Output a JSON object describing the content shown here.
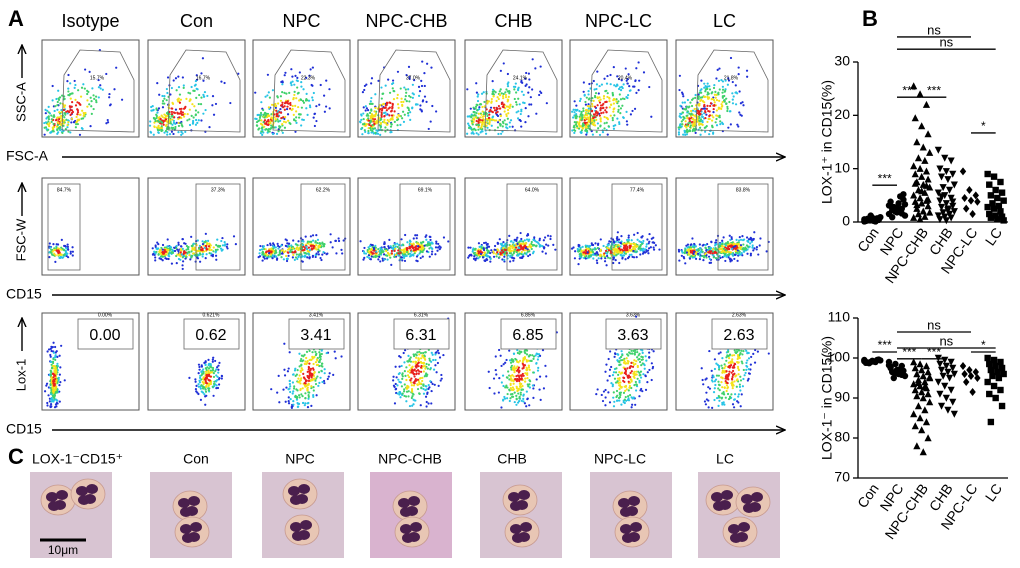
{
  "panel_labels": [
    "A",
    "B",
    "C"
  ],
  "flow": {
    "groups": [
      "Isotype",
      "Con",
      "NPC",
      "NPC-CHB",
      "CHB",
      "NPC-LC",
      "LC"
    ],
    "rows": [
      {
        "y_label": "SSC-A",
        "x_label": "FSC-A",
        "gates": [
          "15.7%",
          "16.7%",
          "22.3%",
          "37.0%",
          "24.1%",
          "20.4%",
          "21.8%"
        ]
      },
      {
        "y_label": "FSC-W",
        "x_label": "CD15",
        "gates": [
          "84.7%",
          "37.3%",
          "62.2%",
          "69.1%",
          "64.0%",
          "77.4%",
          "83.8%"
        ]
      },
      {
        "y_label": "Lox-1",
        "x_label": "CD15",
        "gates": [
          "0.00%",
          "0.621%",
          "3.41%",
          "6.31%",
          "6.85%",
          "3.63%",
          "2.63%"
        ],
        "values": [
          "0.00",
          "0.62",
          "3.41",
          "6.31",
          "6.85",
          "3.63",
          "2.63"
        ]
      }
    ]
  },
  "chart_data": [
    {
      "type": "strip",
      "ylabel": "LOX-1⁺ in CD15(%)",
      "categories": [
        "Con",
        "NPC",
        "NPC-CHB",
        "CHB",
        "NPC-LC",
        "LC"
      ],
      "markers": [
        "circle",
        "circle",
        "triangle",
        "triangle-down",
        "diamond",
        "square"
      ],
      "color": "#000000",
      "ylim": [
        0,
        30
      ],
      "yticks": [
        0,
        10,
        20,
        30
      ],
      "values": [
        [
          0.1,
          0.3,
          0.5,
          0.2,
          0.8,
          0.4,
          0.6,
          0.2,
          0.9,
          0.3,
          0.1,
          0.5,
          1.2,
          0.7,
          0.4
        ],
        [
          1.5,
          2.0,
          2.5,
          3.0,
          1.8,
          4.2,
          2.2,
          3.5,
          1.2,
          2.8,
          4.8,
          3.1,
          2.0,
          1.6,
          3.8,
          2.6,
          5.2,
          0.9,
          2.4,
          3.3
        ],
        [
          25.5,
          24,
          22,
          19.5,
          18,
          16.5,
          15,
          14,
          13,
          12,
          11.5,
          10.5,
          10,
          9.5,
          9,
          8.5,
          8,
          7.5,
          7,
          6.5,
          6,
          5.5,
          5,
          4.5,
          4,
          3.8,
          3.5,
          3,
          2.5,
          2,
          1.8,
          1.5,
          1,
          0.8,
          0.5,
          6.8,
          7.2,
          5.8,
          4.2,
          3.2
        ],
        [
          13.5,
          12,
          11.5,
          10,
          9.5,
          9,
          8.5,
          8,
          7,
          6.5,
          6,
          5.5,
          5,
          4.5,
          4,
          3.5,
          3,
          2.8,
          2.5,
          2,
          1.8,
          1.5,
          1.2,
          1,
          0.8,
          0.5,
          0.3,
          3.8,
          4.8,
          2.2
        ],
        [
          9.5,
          6,
          5,
          4.5,
          4,
          3.8,
          2.5,
          1.5
        ],
        [
          9,
          8.5,
          7.5,
          7,
          6,
          5.5,
          5,
          4.5,
          4,
          3.5,
          3,
          2.8,
          2.5,
          2,
          1.5,
          1.2,
          1,
          0.8,
          0.5,
          0.3
        ]
      ],
      "significance": [
        {
          "from": 0,
          "to": 1,
          "y": 6.9,
          "label": "***"
        },
        {
          "from": 1,
          "to": 2,
          "y": 23.4,
          "label": "***"
        },
        {
          "from": 2,
          "to": 3,
          "y": 23.4,
          "label": "***"
        },
        {
          "from": 1,
          "to": 5,
          "y": 32.4,
          "label": "ns"
        },
        {
          "from": 1,
          "to": 4,
          "y": 34.7,
          "label": "ns"
        },
        {
          "from": 4,
          "to": 5,
          "y": 16.7,
          "label": "*"
        }
      ]
    },
    {
      "type": "strip",
      "ylabel": "LOX-1⁻ in CD15(%)",
      "categories": [
        "Con",
        "NPC",
        "NPC-CHB",
        "CHB",
        "NPC-LC",
        "LC"
      ],
      "markers": [
        "circle",
        "circle",
        "triangle",
        "triangle-down",
        "diamond",
        "square"
      ],
      "color": "#000000",
      "ylim": [
        70,
        110
      ],
      "yticks": [
        70,
        80,
        90,
        100,
        110
      ],
      "values": [
        [
          99.2,
          99,
          99.5,
          98.8,
          99.3,
          99.6,
          98.9,
          99.1,
          99.4,
          98.7,
          99.0,
          99.5
        ],
        [
          99,
          98.5,
          98,
          97.5,
          97,
          96.8,
          96.5,
          96,
          95.5,
          95,
          97.2,
          98.2,
          96.2,
          95.8,
          97.8,
          96.9
        ],
        [
          99,
          98.5,
          98,
          97.5,
          97,
          96.5,
          96,
          95.5,
          95,
          94.5,
          94,
          93.5,
          93,
          92.5,
          92,
          91.5,
          91,
          90.5,
          90,
          89,
          88,
          87,
          86,
          85,
          84,
          83,
          82,
          80,
          78,
          76.5,
          95.2,
          93.8,
          92.8
        ],
        [
          100,
          99.5,
          99,
          98.5,
          98,
          97.5,
          97,
          96.5,
          96,
          95.5,
          95,
          94,
          93,
          92,
          91,
          90,
          89,
          88,
          87,
          86
        ],
        [
          98,
          97,
          96.5,
          96,
          95.5,
          95,
          94,
          91.5
        ],
        [
          100,
          99.5,
          99,
          98.5,
          98,
          97.5,
          97,
          96.5,
          96,
          95.5,
          95,
          94,
          93,
          92,
          91,
          90,
          88,
          84
        ]
      ],
      "significance": [
        {
          "from": 0,
          "to": 1,
          "y": 101.5,
          "label": "***"
        },
        {
          "from": 1,
          "to": 2,
          "y": 99.8,
          "label": "***"
        },
        {
          "from": 2,
          "to": 3,
          "y": 99.8,
          "label": "***"
        },
        {
          "from": 1,
          "to": 5,
          "y": 102.5,
          "label": "ns"
        },
        {
          "from": 1,
          "to": 4,
          "y": 106.5,
          "label": "ns"
        },
        {
          "from": 4,
          "to": 5,
          "y": 101.5,
          "label": "*"
        }
      ]
    }
  ],
  "morphology": {
    "title": "LOX-1⁻CD15⁺",
    "groups": [
      "Con",
      "NPC",
      "NPC-CHB",
      "CHB",
      "NPC-LC",
      "LC"
    ],
    "scale_bar": "10μm"
  }
}
